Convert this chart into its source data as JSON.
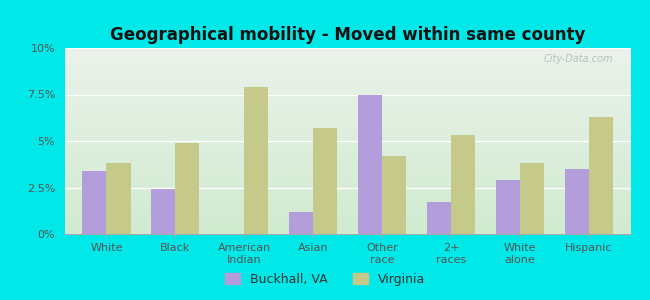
{
  "title": "Geographical mobility - Moved within same county",
  "categories": [
    "White",
    "Black",
    "American\nIndian",
    "Asian",
    "Other\nrace",
    "2+\nraces",
    "White\nalone",
    "Hispanic"
  ],
  "buckhall_values": [
    3.4,
    2.4,
    0.0,
    1.2,
    7.5,
    1.7,
    2.9,
    3.5
  ],
  "virginia_values": [
    3.8,
    4.9,
    7.9,
    5.7,
    4.2,
    5.3,
    3.8,
    6.3
  ],
  "buckhall_color": "#b39ddb",
  "virginia_color": "#c5c98a",
  "ylim": [
    0,
    10
  ],
  "yticks": [
    0,
    2.5,
    5.0,
    7.5,
    10.0
  ],
  "ytick_labels": [
    "0%",
    "2.5%",
    "5%",
    "7.5%",
    "10%"
  ],
  "bar_width": 0.35,
  "legend_labels": [
    "Buckhall, VA",
    "Virginia"
  ],
  "outer_bg": "#00e8e8",
  "title_fontsize": 12,
  "tick_fontsize": 8,
  "legend_fontsize": 9,
  "grad_top": "#e8f0e8",
  "grad_bottom": "#d0ecd0"
}
